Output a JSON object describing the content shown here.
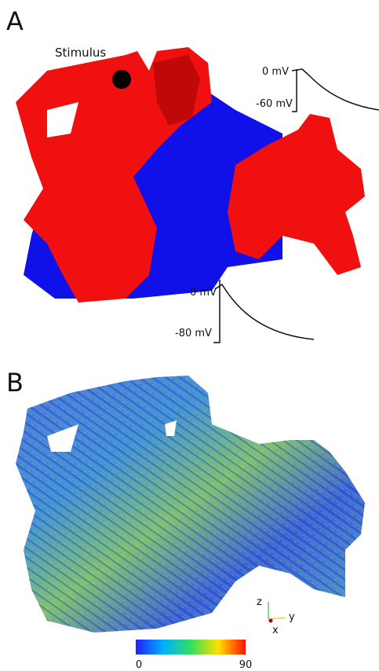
{
  "panel_a": {
    "label": "A",
    "stimulus_label": "Stimulus",
    "traces": [
      {
        "top_label": "0 mV",
        "bottom_label": "-60 mV"
      },
      {
        "top_label": "0 mV",
        "bottom_label": "-80 mV"
      }
    ]
  },
  "panel_b": {
    "label": "B",
    "axes": {
      "z": "z",
      "y": "y",
      "x": "x"
    },
    "colorbar": {
      "min": 0,
      "max": 90
    }
  }
}
